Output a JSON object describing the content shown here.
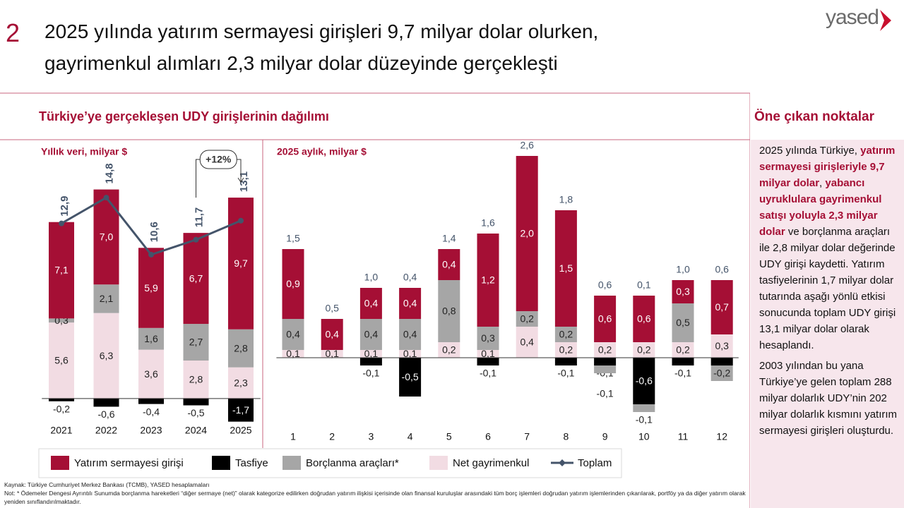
{
  "page_number": "2",
  "title": [
    "2025 yılında yatırım sermayesi girişleri 9,7 milyar dolar olurken,",
    "gayrimenkul alımları 2,3 milyar dolar düzeyinde gerçekleşti"
  ],
  "logo": "yased",
  "section_title": "Türkiye’ye gerçekleşen UDY girişlerinin dağılımı",
  "side": {
    "title": "Öne çıkan noktalar",
    "paragraphs": [
      [
        {
          "text": "2025 yılında Türkiye, ",
          "emphasis": false
        },
        {
          "text": "yatırım sermayesi girişleriyle 9,7 milyar dolar",
          "emphasis": true
        },
        {
          "text": ", ",
          "emphasis": false
        },
        {
          "text": "yabancı uyruklulara gayrimenkul satışı yoluyla 2,3 milyar dolar",
          "emphasis": true
        },
        {
          "text": " ve borçlanma araçları ile 2,8 milyar dolar değerinde UDY girişi kaydetti. Yatırım tasfiyelerinin 1,7 milyar dolar tutarında aşağı yönlü etkisi sonucunda toplam UDY girişi 13,1 milyar dolar olarak hesaplandı.",
          "emphasis": false
        }
      ],
      [
        {
          "text": "2003 yılından bu yana Türkiye’ye gelen toplam 288 milyar dolarlık UDY’nin 202 milyar dolarlık kısmını yatırım sermayesi girişleri oluşturdu.",
          "emphasis": false
        }
      ]
    ]
  },
  "footnotes": [
    "Kaynak: Türkiye Cumhuriyet Merkez Bankası (TCMB), YASED hesaplamaları",
    "Not: * Ödemeler Dengesi Ayrıntılı Sunumda borçlanma hareketleri “diğer sermaye (net)” olarak kategorize edilirken doğrudan yatırım ilişkisi içerisinde olan finansal kuruluşlar arasındaki tüm borç işlemleri doğrudan yatırım işlemlerinden çıkarılarak, portföy ya da diğer yatırım olarak yeniden sınıflandırılmaktadır."
  ],
  "chart_data": [
    {
      "type": "stacked_bar",
      "subtitle": "Yıllık veri, milyar $",
      "annotation": "+12%",
      "categories": [
        "2021",
        "2022",
        "2023",
        "2024",
        "2025"
      ],
      "ylim": [
        -2.5,
        16
      ],
      "series": [
        {
          "name": "Yatırım sermayesi girişi",
          "color": "#a50f35",
          "values": [
            7.1,
            7.0,
            5.9,
            6.7,
            9.7
          ],
          "value_labels": [
            "7,1",
            "7,0",
            "5,9",
            "6,7",
            "9,7"
          ]
        },
        {
          "name": "Tasfiye",
          "color": "#000000",
          "values": [
            -0.2,
            -0.6,
            -0.4,
            -0.5,
            -1.7
          ],
          "value_labels": [
            "-0,2",
            "-0,6",
            "-0,4",
            "-0,5",
            "-1,7"
          ]
        },
        {
          "name": "Borçlanma araçları*",
          "color": "#a6a6a6",
          "values": [
            0.3,
            2.1,
            1.6,
            2.7,
            2.8
          ],
          "value_labels": [
            "0,3",
            "2,1",
            "1,6",
            "2,7",
            "2,8"
          ]
        },
        {
          "name": "Net gayrimenkul",
          "color": "#f2dce3",
          "values": [
            5.6,
            6.3,
            3.6,
            2.8,
            2.3
          ],
          "value_labels": [
            "5,6",
            "6,3",
            "3,6",
            "2,8",
            "2,3"
          ]
        },
        {
          "name": "Toplam",
          "type": "line",
          "color": "#44546a",
          "values": [
            12.9,
            14.8,
            10.6,
            11.7,
            13.1
          ],
          "value_labels": [
            "12,9",
            "14,8",
            "10,6",
            "11,7",
            "13,1"
          ]
        }
      ]
    },
    {
      "type": "stacked_bar",
      "subtitle": "2025 aylık, milyar $",
      "categories": [
        "1",
        "2",
        "3",
        "4",
        "5",
        "6",
        "7",
        "8",
        "9",
        "10",
        "11",
        "12"
      ],
      "ylim": [
        -0.8,
        2.7
      ],
      "series": [
        {
          "color": "#a50f35",
          "values": [
            0.9,
            0.4,
            0.4,
            0.4,
            0.4,
            1.2,
            2.0,
            1.5,
            0.6,
            0.6,
            0.3,
            0.7
          ],
          "value_labels": [
            "0,9",
            "0,4",
            "0,4",
            "0,4",
            "0,4",
            "1,2",
            "2,0",
            "1,5",
            "0,6",
            "0,6",
            "0,3",
            "0,7"
          ]
        },
        {
          "color": "#000000",
          "values": [
            null,
            null,
            -0.1,
            -0.5,
            null,
            -0.1,
            null,
            -0.1,
            -0.1,
            -0.6,
            -0.1,
            -0.1
          ],
          "value_labels": [
            null,
            null,
            "-0,1",
            "-0,5",
            null,
            "-0,1",
            null,
            "-0,1",
            "-0,1",
            "-0,6",
            "-0,1",
            "-0,1"
          ]
        },
        {
          "color": "#a6a6a6",
          "values": [
            0.4,
            null,
            0.4,
            0.4,
            0.8,
            0.3,
            0.2,
            0.2,
            -0.1,
            -0.1,
            0.5,
            -0.2
          ],
          "value_labels": [
            "0,4",
            null,
            "0,4",
            "0,4",
            "0,8",
            "0,3",
            "0,2",
            "0,2",
            "-0,1",
            "-0,1",
            "0,5",
            "-0,2"
          ]
        },
        {
          "color": "#f2dce3",
          "values": [
            0.1,
            0.1,
            0.1,
            0.1,
            0.2,
            0.1,
            0.4,
            0.2,
            0.2,
            0.2,
            0.2,
            0.3
          ],
          "value_labels": [
            "0,1",
            "0,1",
            "0,1",
            "0,1",
            "0,2",
            "0,1",
            "0,4",
            "0,2",
            "0,2",
            "0,2",
            "0,2",
            "0,3"
          ]
        }
      ],
      "totals": {
        "color": "#44546a",
        "values": [
          1.5,
          0.5,
          1.0,
          0.4,
          1.4,
          1.6,
          2.6,
          1.8,
          0.6,
          0.1,
          1.0,
          0.6
        ],
        "value_labels": [
          "1,5",
          "0,5",
          "1,0",
          "0,4",
          "1,4",
          "1,6",
          "2,6",
          "1,8",
          "0,6",
          "0,1",
          "1,0",
          "0,6"
        ]
      }
    }
  ]
}
